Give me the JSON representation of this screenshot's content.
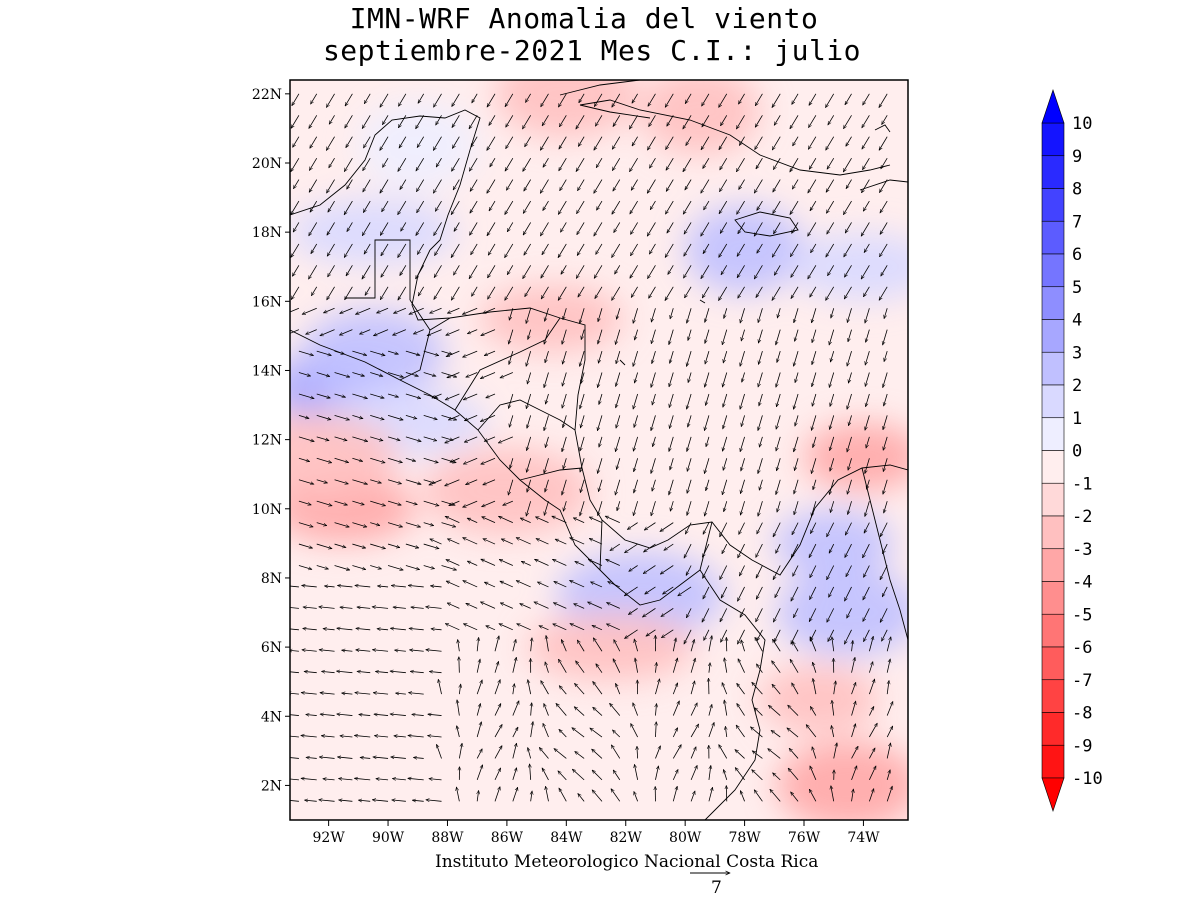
{
  "title": {
    "line1": "IMN-WRF Anomalia del viento",
    "line2": "septiembre-2021 Mes C.I.: julio"
  },
  "footer": {
    "institution": "Instituto Meteorologico Nacional Costa Rica",
    "reference_vector_value": "7"
  },
  "map": {
    "lat_range": [
      1,
      22.4
    ],
    "lon_range": [
      -93.3,
      -72.5
    ],
    "lat_ticks": [
      "2N",
      "4N",
      "6N",
      "8N",
      "10N",
      "12N",
      "14N",
      "16N",
      "18N",
      "20N",
      "22N"
    ],
    "lon_ticks": [
      "92W",
      "90W",
      "88W",
      "86W",
      "84W",
      "82W",
      "80W",
      "78W",
      "76W",
      "74W"
    ]
  },
  "colorbar": {
    "labels": [
      "10",
      "9",
      "8",
      "7",
      "6",
      "5",
      "4",
      "3",
      "2",
      "1",
      "0",
      "-1",
      "-2",
      "-3",
      "-4",
      "-5",
      "-6",
      "-7",
      "-8",
      "-9",
      "-10"
    ],
    "colors": [
      "#1414ff",
      "#2a2aff",
      "#4343ff",
      "#5c5cff",
      "#7575ff",
      "#8e8eff",
      "#a7a7ff",
      "#c0c0ff",
      "#d9d9ff",
      "#eeeeff",
      "#ffeeee",
      "#ffd9d9",
      "#ffc0c0",
      "#ffa7a7",
      "#ff8e8e",
      "#ff7575",
      "#ff5c5c",
      "#ff4343",
      "#ff2a2a",
      "#ff1414"
    ],
    "top_arrow_color": "#0000ff",
    "bottom_arrow_color": "#ff0000"
  },
  "chart_data": {
    "type": "heatmap",
    "title": "IMN-WRF Anomalia del viento septiembre-2021 Mes C.I.: julio",
    "variable": "wind speed anomaly with wind anomaly vectors",
    "units_scale": [
      -10,
      10
    ],
    "reference_vector": 7,
    "xlabel": "",
    "ylabel": "",
    "anomaly_regions": [
      {
        "lon": -92.0,
        "lat": 13.5,
        "value": 4
      },
      {
        "lon": -90.5,
        "lat": 14.5,
        "value": 3
      },
      {
        "lon": -89.5,
        "lat": 12.5,
        "value": 2
      },
      {
        "lon": -78.0,
        "lat": 17.5,
        "value": 3
      },
      {
        "lon": -74.0,
        "lat": 17.0,
        "value": 2
      },
      {
        "lon": -81.5,
        "lat": 7.5,
        "value": 3
      },
      {
        "lon": -75.0,
        "lat": 9.0,
        "value": 3
      },
      {
        "lon": -74.5,
        "lat": 7.0,
        "value": 3
      },
      {
        "lon": -90.5,
        "lat": 18.0,
        "value": 2
      },
      {
        "lon": -89.0,
        "lat": 20.5,
        "value": 1
      },
      {
        "lon": -91.5,
        "lat": 10.0,
        "value": -3
      },
      {
        "lon": -92.5,
        "lat": 11.5,
        "value": -2
      },
      {
        "lon": -74.0,
        "lat": 11.5,
        "value": -3
      },
      {
        "lon": -74.5,
        "lat": 2.0,
        "value": -3
      },
      {
        "lon": -82.5,
        "lat": 6.0,
        "value": -2
      },
      {
        "lon": -79.5,
        "lat": 21.5,
        "value": -2
      },
      {
        "lon": -84.5,
        "lat": 15.5,
        "value": -2
      },
      {
        "lon": -86.0,
        "lat": 10.5,
        "value": -2
      },
      {
        "lon": -75.5,
        "lat": 4.5,
        "value": -2
      },
      {
        "lon": -84.0,
        "lat": 22.0,
        "value": -2
      }
    ]
  }
}
